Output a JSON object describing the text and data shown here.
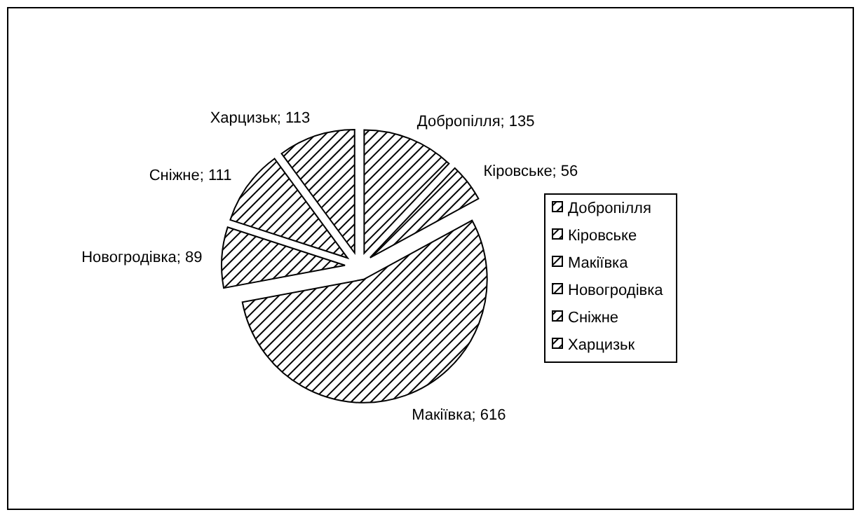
{
  "chart_data": {
    "type": "pie",
    "categories": [
      "Добропілля",
      "Кіровське",
      "Макіївка",
      "Новогродівка",
      "Сніжне",
      "Харцизьк"
    ],
    "values": [
      135,
      56,
      616,
      89,
      111,
      113
    ],
    "value_labels": [
      "Добропілля; 135",
      "Кіровське; 56",
      "Макіївка; 616",
      "Новогродівка; 89",
      "Сніжне; 111",
      "Харцизьк; 113"
    ],
    "colors": [
      "#000000",
      "#000000",
      "#000000",
      "#000000",
      "#000000",
      "#000000"
    ],
    "legend": "right"
  }
}
